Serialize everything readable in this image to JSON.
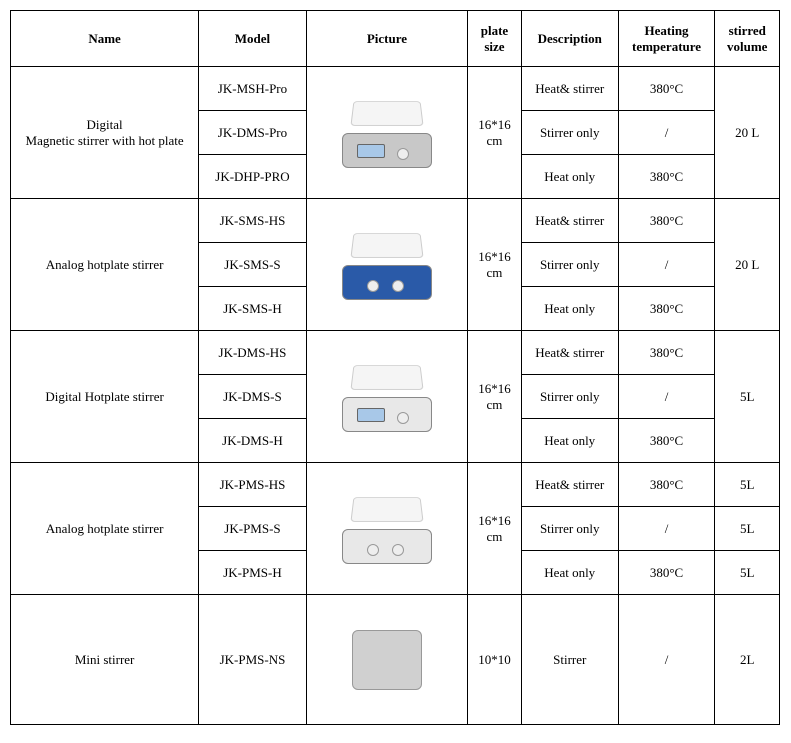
{
  "headers": {
    "name": "Name",
    "model": "Model",
    "picture": "Picture",
    "plate_size": "plate size",
    "description": "Description",
    "heating": "Heating temperature",
    "volume": "stirred volume"
  },
  "groups": [
    {
      "name": "Digital\nMagnetic stirrer with hot plate",
      "plate_size": "16*16 cm",
      "volume": "20 L",
      "volume_rowspan": 3,
      "picture": {
        "base_color": "#c8c8c8",
        "has_screen": true,
        "knobs": 1
      },
      "rows": [
        {
          "model": "JK-MSH-Pro",
          "desc": "Heat& stirrer",
          "heat": "380°C"
        },
        {
          "model": "JK-DMS-Pro",
          "desc": "Stirrer only",
          "heat": "/"
        },
        {
          "model": "JK-DHP-PRO",
          "desc": "Heat only",
          "heat": "380°C"
        }
      ]
    },
    {
      "name": "Analog hotplate stirrer",
      "plate_size": "16*16 cm",
      "volume": "20 L",
      "volume_rowspan": 3,
      "picture": {
        "base_color": "#2a5aa8",
        "has_screen": false,
        "knobs": 2
      },
      "rows": [
        {
          "model": "JK-SMS-HS",
          "desc": "Heat& stirrer",
          "heat": "380°C"
        },
        {
          "model": "JK-SMS-S",
          "desc": "Stirrer only",
          "heat": "/"
        },
        {
          "model": "JK-SMS-H",
          "desc": "Heat only",
          "heat": "380°C"
        }
      ]
    },
    {
      "name": "Digital Hotplate stirrer",
      "plate_size": "16*16 cm",
      "volume": "5L",
      "volume_rowspan": 3,
      "picture": {
        "base_color": "#e8e8e8",
        "has_screen": true,
        "knobs": 1
      },
      "rows": [
        {
          "model": "JK-DMS-HS",
          "desc": "Heat& stirrer",
          "heat": "380°C"
        },
        {
          "model": "JK-DMS-S",
          "desc": "Stirrer only",
          "heat": "/"
        },
        {
          "model": "JK-DMS-H",
          "desc": "Heat only",
          "heat": "380°C"
        }
      ]
    },
    {
      "name": "Analog hotplate stirrer",
      "plate_size": "16*16 cm",
      "volume": "5L",
      "volume_rowspan": 1,
      "volumes_per_row": [
        "5L",
        "5L",
        "5L"
      ],
      "picture": {
        "base_color": "#e8e8e8",
        "has_screen": false,
        "knobs": 2
      },
      "rows": [
        {
          "model": "JK-PMS-HS",
          "desc": "Heat& stirrer",
          "heat": "380°C"
        },
        {
          "model": "JK-PMS-S",
          "desc": "Stirrer only",
          "heat": "/"
        },
        {
          "model": "JK-PMS-H",
          "desc": "Heat only",
          "heat": "380°C"
        }
      ]
    }
  ],
  "mini": {
    "name": "Mini stirrer",
    "model": "JK-PMS-NS",
    "plate_size": "10*10",
    "desc": "Stirrer",
    "heat": "/",
    "volume": "2L"
  },
  "colors": {
    "border": "#000000",
    "text": "#000000",
    "background": "#ffffff"
  }
}
